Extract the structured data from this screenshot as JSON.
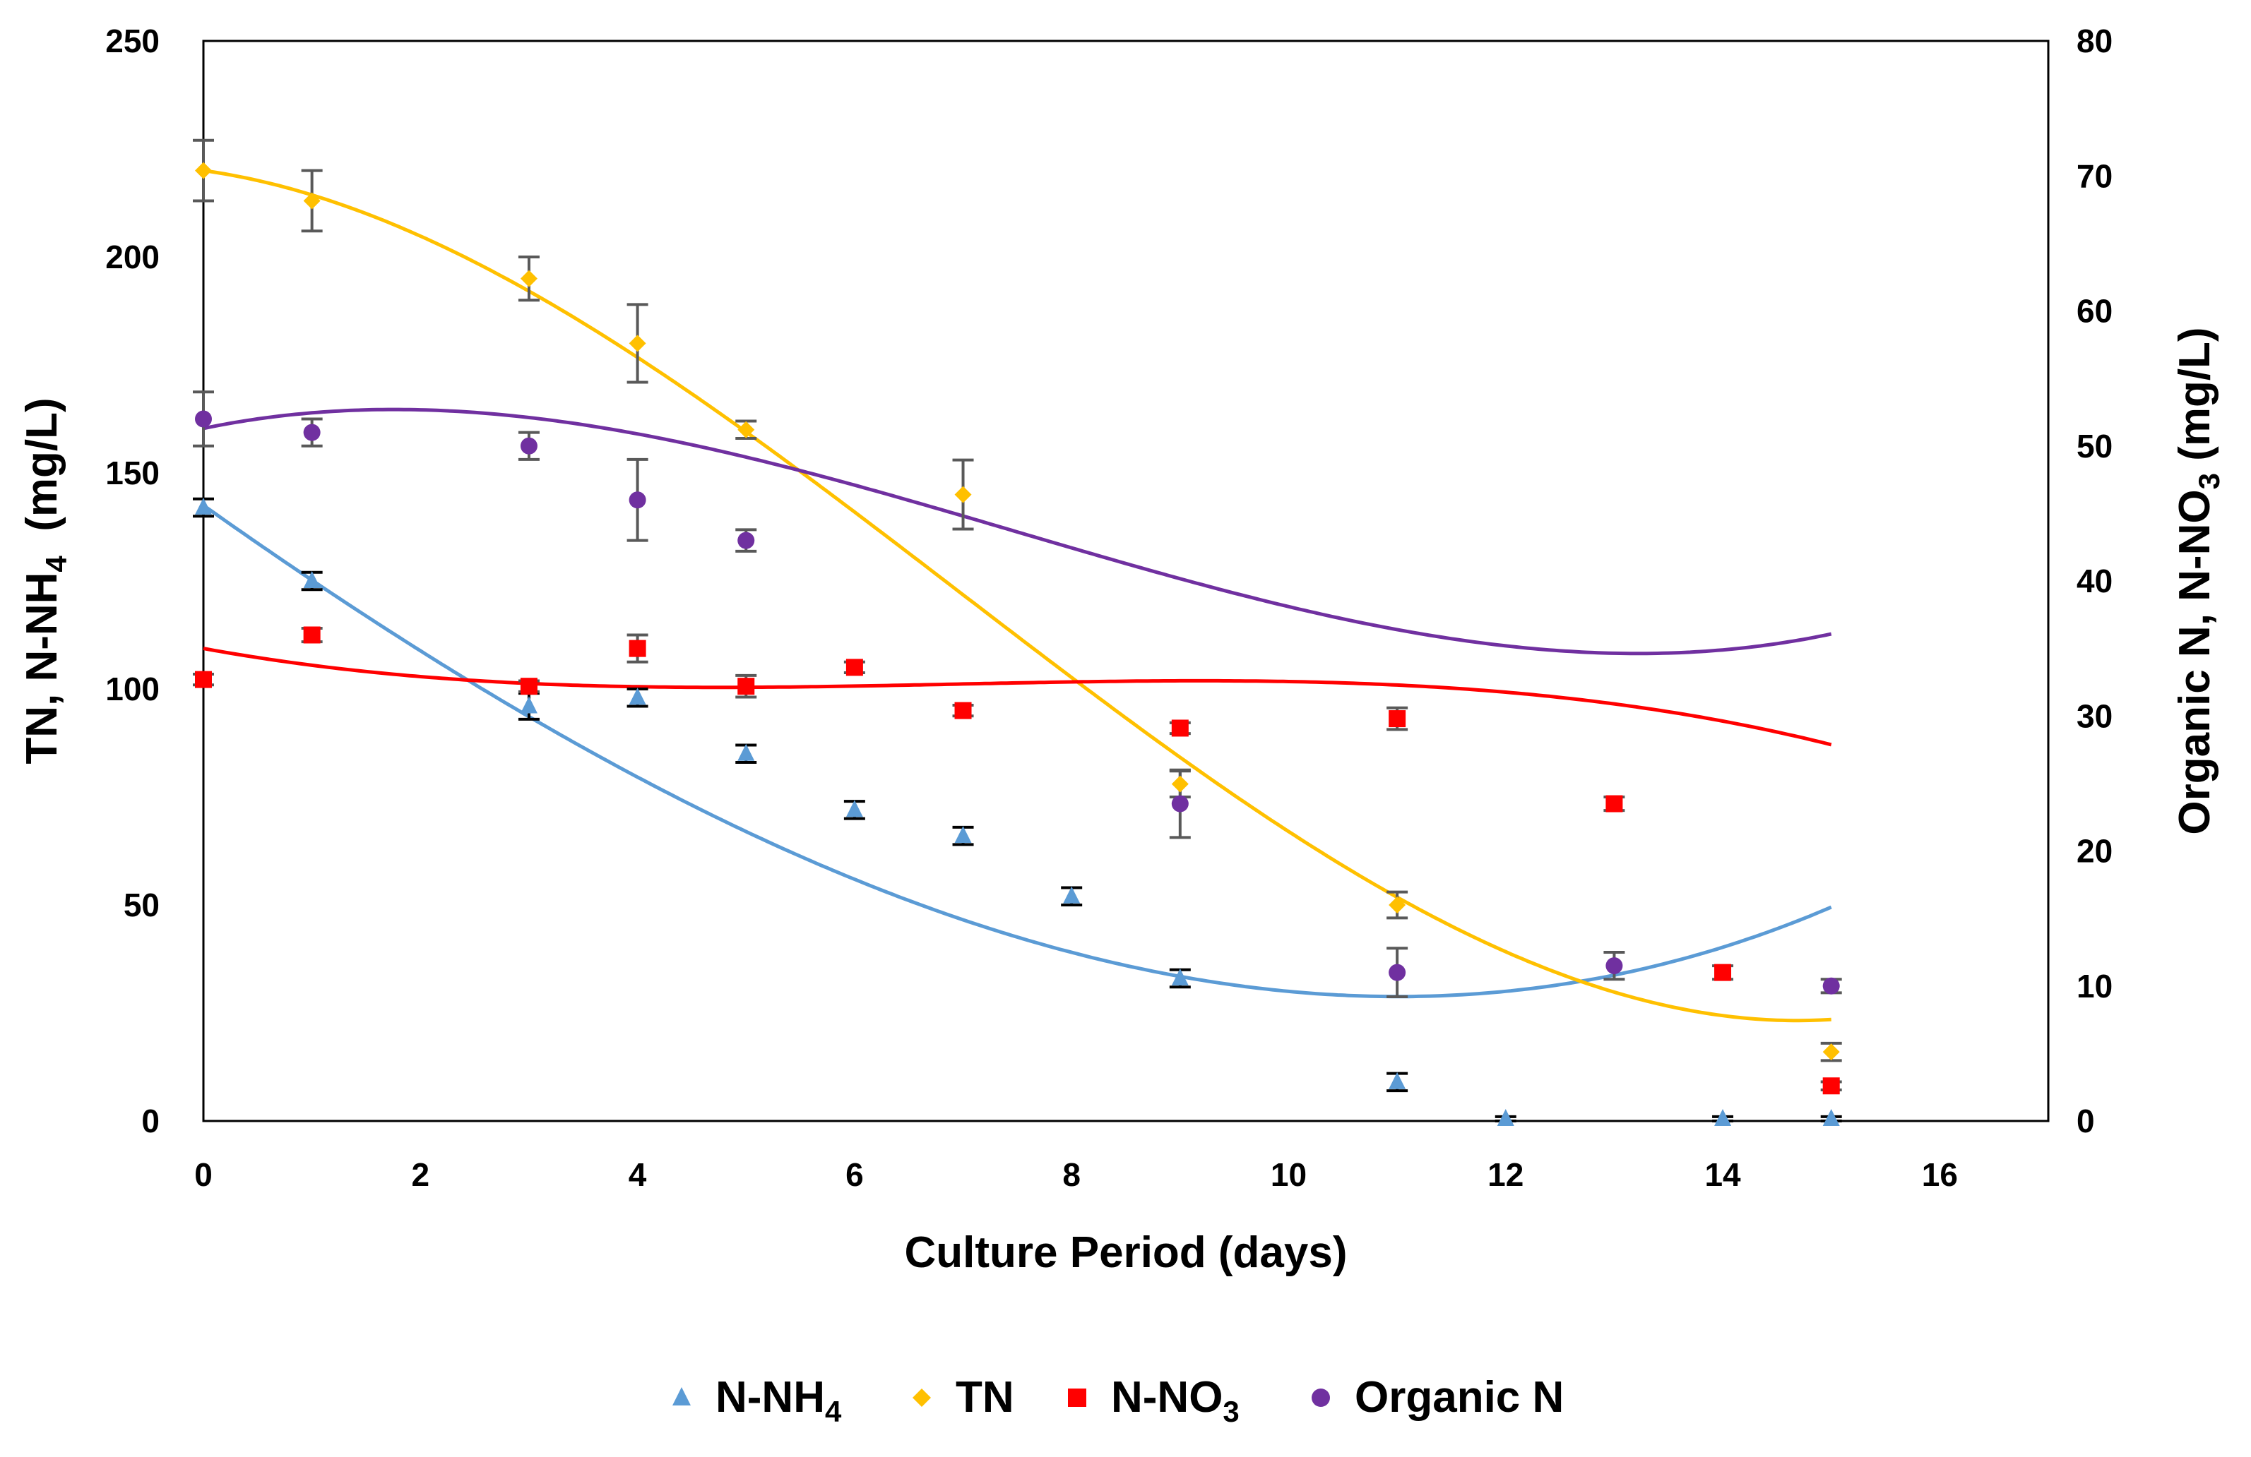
{
  "chart_data": {
    "type": "scatter",
    "title": "",
    "xlabel": "Culture Period (days)",
    "ylabel_left": {
      "main": "TN, N-NH",
      "sub": "4",
      "unit": "  (mg/L)"
    },
    "ylabel_right": {
      "main": "Organic N, N-NO",
      "sub": "3",
      "unit": " (mg/L)"
    },
    "xlim": [
      0,
      17
    ],
    "xticks": [
      0,
      2,
      4,
      6,
      8,
      10,
      12,
      14,
      16
    ],
    "ylim_left": [
      0,
      250
    ],
    "yticks_left": [
      0,
      50,
      100,
      150,
      200,
      250
    ],
    "ylim_right": [
      0,
      80
    ],
    "yticks_right": [
      0,
      10,
      20,
      30,
      40,
      50,
      60,
      70,
      80
    ],
    "grid": false,
    "legend_position": "bottom",
    "series": [
      {
        "key": "nh4",
        "name": "N-NH",
        "name_sub": "4",
        "axis": "left",
        "marker": "triangle",
        "color": "#5B9BD5",
        "errcolor": "#000000",
        "x": [
          0,
          1,
          3,
          4,
          5,
          6,
          7,
          8,
          9,
          11,
          12,
          14,
          15
        ],
        "y": [
          142,
          125,
          96,
          98,
          85,
          72,
          66,
          52,
          33,
          9,
          0.5,
          0.5,
          0.5
        ],
        "err": [
          2,
          2,
          3,
          2,
          2,
          2,
          2,
          2,
          2,
          2,
          0.5,
          0.5,
          0.5
        ],
        "trend": [
          142.5,
          -17.75,
          0.41,
          0.024
        ]
      },
      {
        "key": "tn",
        "name": "TN",
        "name_sub": "",
        "axis": "left",
        "marker": "diamond",
        "color": "#FFC000",
        "errcolor": "#595959",
        "x": [
          0,
          1,
          3,
          4,
          5,
          7,
          9,
          11,
          15
        ],
        "y": [
          220,
          213,
          195,
          180,
          160,
          145,
          78,
          50,
          16
        ],
        "err": [
          7,
          7,
          5,
          9,
          2,
          8,
          3,
          3,
          2
        ],
        "trend": [
          220,
          -3.5,
          -2.26,
          0.108
        ]
      },
      {
        "key": "no3",
        "name": "N-NO",
        "name_sub": "3",
        "axis": "right",
        "marker": "square",
        "color": "#FF0000",
        "errcolor": "#595959",
        "x": [
          0,
          1,
          3,
          4,
          5,
          6,
          7,
          9,
          11,
          13,
          14,
          15
        ],
        "y": [
          32.7,
          36,
          32.2,
          35,
          32.2,
          33.6,
          30.4,
          29.1,
          29.8,
          23.5,
          11,
          2.6
        ],
        "err": [
          0.4,
          0.5,
          0.4,
          1,
          0.8,
          0.4,
          0.4,
          0.4,
          0.8,
          0.5,
          0.5,
          0.3
        ],
        "trend": [
          35,
          -1.465,
          0.234,
          -0.0112
        ]
      },
      {
        "key": "orgn",
        "name": "Organic N",
        "name_sub": "",
        "axis": "right",
        "marker": "circle",
        "color": "#7030A0",
        "errcolor": "#595959",
        "x": [
          0,
          1,
          3,
          4,
          5,
          9,
          11,
          13,
          15
        ],
        "y": [
          52,
          51,
          50,
          46,
          43,
          23.5,
          11,
          11.5,
          10
        ],
        "err": [
          2,
          1,
          1,
          3,
          0.8,
          2.5,
          1.8,
          1,
          0.5
        ],
        "trend": [
          51.3,
          1.67,
          -0.539,
          0.024
        ]
      }
    ]
  }
}
